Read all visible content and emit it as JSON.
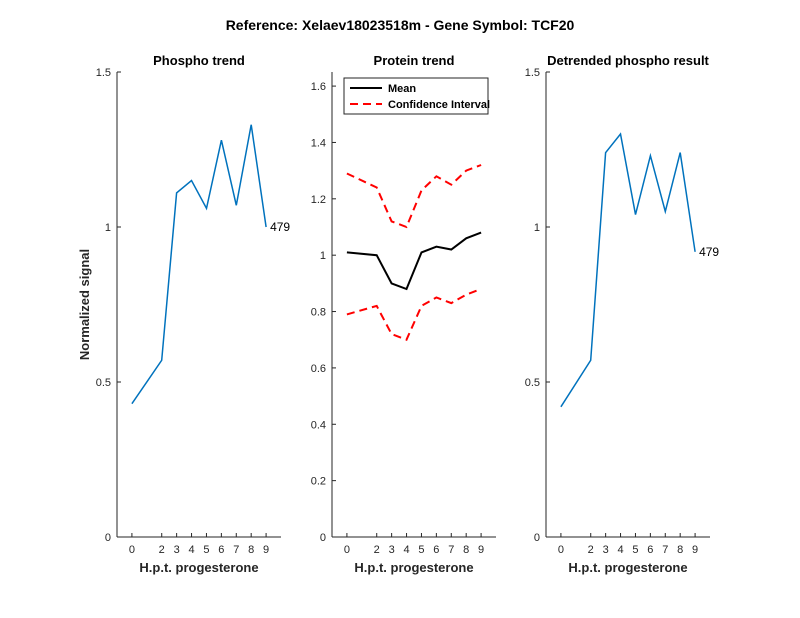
{
  "figure": {
    "suptitle": "Reference:  Xelaev18023518m - Gene Symbol:  TCF20"
  },
  "chart_data": [
    {
      "type": "line",
      "title": "Phospho trend",
      "xlabel": "H.p.t. progesterone",
      "ylabel": "Normalized signal",
      "x": [
        0,
        2,
        3,
        4,
        5,
        6,
        7,
        8,
        9
      ],
      "xlim": [
        -1,
        10
      ],
      "ylim": [
        0,
        1.5
      ],
      "yticks": [
        0,
        0.5,
        1,
        1.5
      ],
      "ytick_labels": [
        "0",
        "0.5",
        "1",
        "1.5"
      ],
      "series": [
        {
          "values": [
            0.43,
            0.57,
            1.11,
            1.15,
            1.06,
            1.28,
            1.07,
            1.33,
            1.0
          ],
          "color": "#0072BD",
          "style": "solid"
        }
      ],
      "point_label": "479"
    },
    {
      "type": "line",
      "title": "Protein trend",
      "xlabel": "H.p.t. progesterone",
      "ylabel": "",
      "x": [
        0,
        2,
        3,
        4,
        5,
        6,
        7,
        8,
        9
      ],
      "xlim": [
        -1,
        10
      ],
      "ylim": [
        0,
        1.65
      ],
      "yticks": [
        0,
        0.2,
        0.4,
        0.6,
        0.8,
        1,
        1.2,
        1.4,
        1.6
      ],
      "ytick_labels": [
        "0",
        "0.2",
        "0.4",
        "0.6",
        "0.8",
        "1",
        "1.2",
        "1.4",
        "1.6"
      ],
      "series": [
        {
          "name": "Mean",
          "values": [
            1.01,
            1.0,
            0.9,
            0.88,
            1.01,
            1.03,
            1.02,
            1.06,
            1.08
          ],
          "color": "#000000",
          "style": "solid"
        },
        {
          "name": "Confidence Interval",
          "values": [
            1.29,
            1.24,
            1.12,
            1.1,
            1.23,
            1.28,
            1.25,
            1.3,
            1.32
          ],
          "color": "#FF0000",
          "style": "dashed"
        },
        {
          "values": [
            0.79,
            0.82,
            0.72,
            0.7,
            0.82,
            0.85,
            0.83,
            0.86,
            0.88
          ],
          "color": "#FF0000",
          "style": "dashed"
        }
      ],
      "legend_entries": [
        "Mean",
        "Confidence Interval"
      ],
      "legend_loc": "top-left"
    },
    {
      "type": "line",
      "title": "Detrended phospho result",
      "xlabel": "H.p.t. progesterone",
      "ylabel": "",
      "x": [
        0,
        2,
        3,
        4,
        5,
        6,
        7,
        8,
        9
      ],
      "xlim": [
        -1,
        10
      ],
      "ylim": [
        0,
        1.5
      ],
      "yticks": [
        0,
        0.5,
        1,
        1.5
      ],
      "ytick_labels": [
        "0",
        "0.5",
        "1",
        "1.5"
      ],
      "series": [
        {
          "values": [
            0.42,
            0.57,
            1.24,
            1.3,
            1.04,
            1.23,
            1.05,
            1.24,
            0.92
          ],
          "color": "#0072BD",
          "style": "solid"
        }
      ],
      "point_label": "479"
    }
  ]
}
